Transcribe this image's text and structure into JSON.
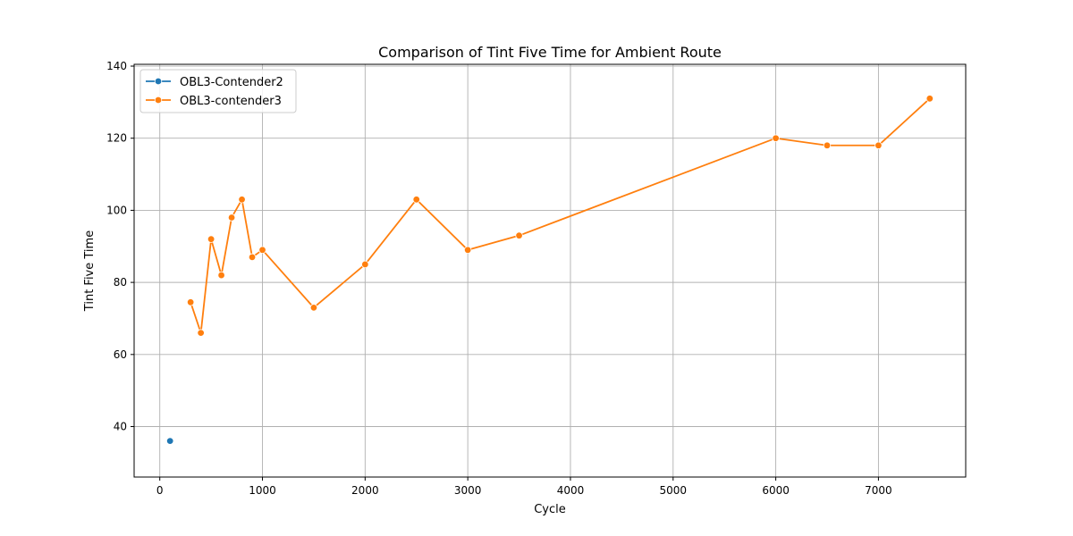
{
  "chart_data": {
    "type": "line",
    "title": "Comparison of Tint Five Time for Ambient Route",
    "xlabel": "Cycle",
    "ylabel": "Tint Five Time",
    "xlim": [
      -250,
      7850
    ],
    "ylim": [
      26,
      140.5
    ],
    "xticks": [
      0,
      1000,
      2000,
      3000,
      4000,
      5000,
      6000,
      7000
    ],
    "yticks": [
      40,
      60,
      80,
      100,
      120,
      140
    ],
    "grid": true,
    "legend_position": "top-left",
    "series": [
      {
        "name": "OBL3-Contender2",
        "color": "#1f77b4",
        "points": [
          {
            "x": 100,
            "y": 36
          }
        ]
      },
      {
        "name": "OBL3-contender3",
        "color": "#ff7f0e",
        "points": [
          {
            "x": 300,
            "y": 74.5
          },
          {
            "x": 400,
            "y": 66
          },
          {
            "x": 500,
            "y": 92
          },
          {
            "x": 600,
            "y": 82
          },
          {
            "x": 700,
            "y": 98
          },
          {
            "x": 800,
            "y": 103
          },
          {
            "x": 900,
            "y": 87
          },
          {
            "x": 1000,
            "y": 89
          },
          {
            "x": 1500,
            "y": 73
          },
          {
            "x": 2000,
            "y": 85
          },
          {
            "x": 2500,
            "y": 103
          },
          {
            "x": 3000,
            "y": 89
          },
          {
            "x": 3500,
            "y": 93
          },
          {
            "x": 6000,
            "y": 120
          },
          {
            "x": 6500,
            "y": 118
          },
          {
            "x": 7000,
            "y": 118
          },
          {
            "x": 7500,
            "y": 131
          }
        ]
      }
    ]
  }
}
